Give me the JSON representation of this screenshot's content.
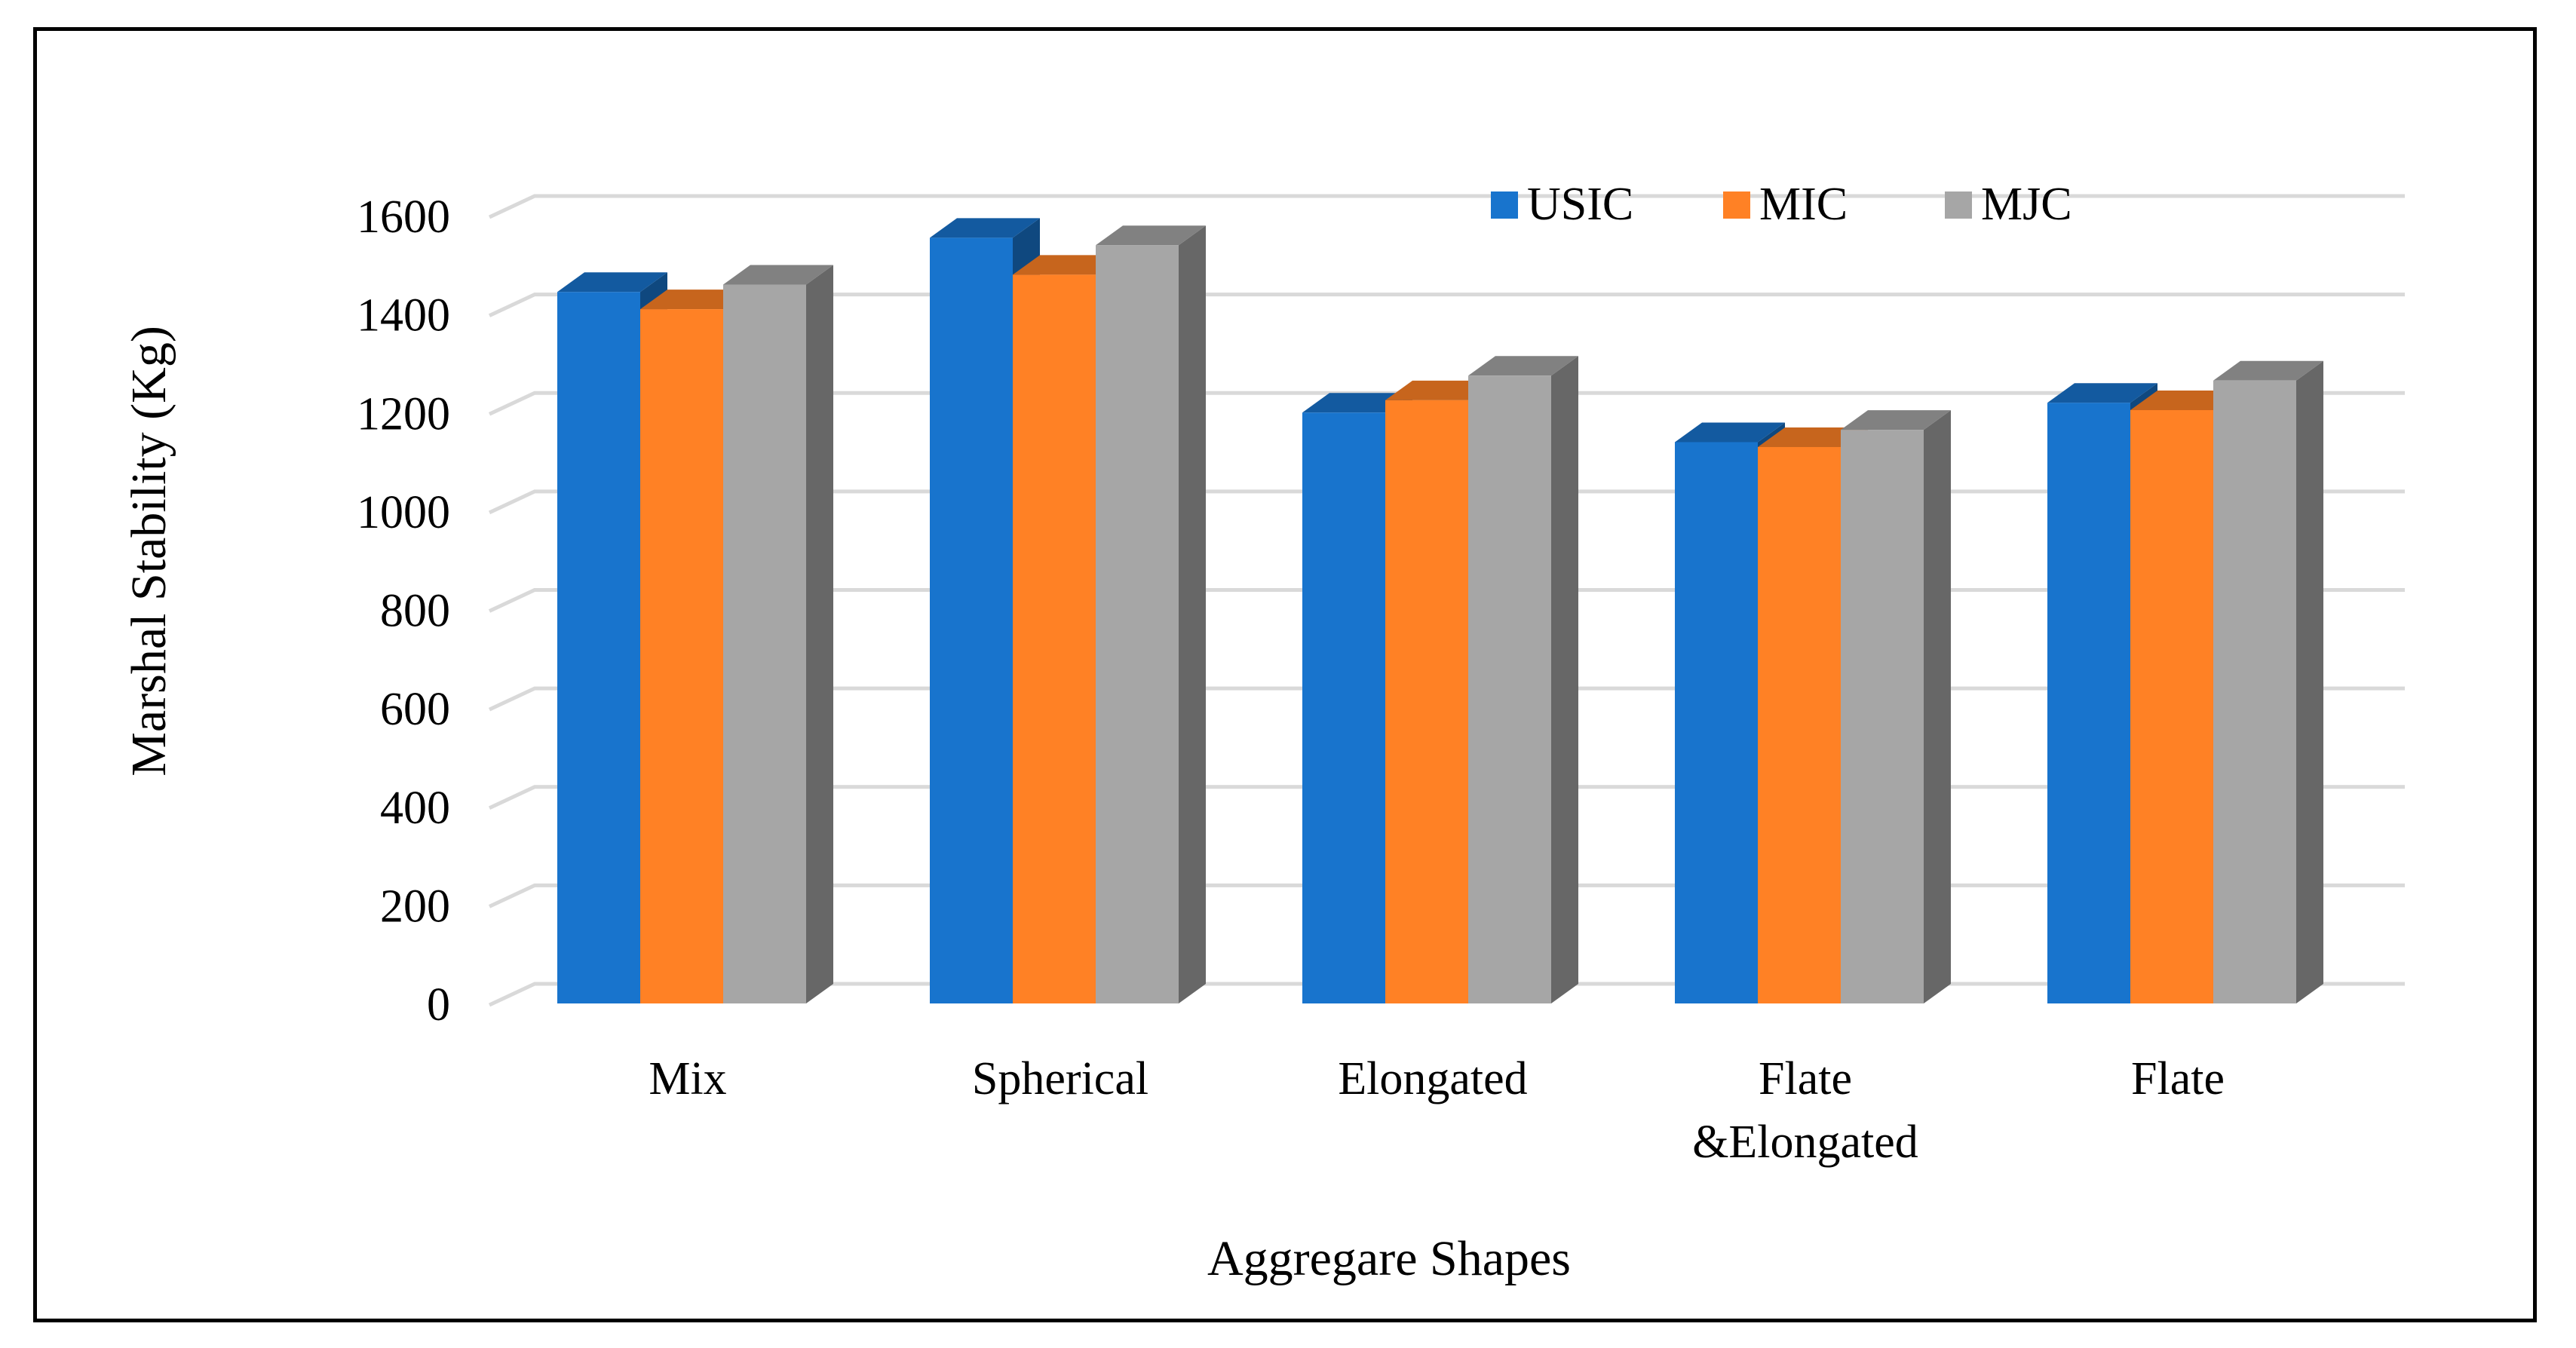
{
  "chart_data": {
    "type": "bar",
    "title": "",
    "xlabel": "Aggregare Shapes",
    "ylabel": "Marshal Stability (Kg)",
    "ylim": [
      0,
      1600
    ],
    "yticks": [
      "0",
      "200",
      "400",
      "600",
      "800",
      "1000",
      "1200",
      "1400",
      "1600"
    ],
    "yticks_values": [
      0,
      200,
      400,
      600,
      800,
      1000,
      1200,
      1400,
      1600
    ],
    "categories": [
      "Mix",
      "Spherical",
      "Elongated",
      "Flate\n&Elongated",
      "Flate"
    ],
    "category_lines": [
      [
        "Mix"
      ],
      [
        "Spherical"
      ],
      [
        "Elongated"
      ],
      [
        "Flate",
        "&Elongated"
      ],
      [
        "Flate"
      ]
    ],
    "series": [
      {
        "name": "USIC",
        "color": "#1874CD",
        "values": [
          1445,
          1555,
          1200,
          1140,
          1220
        ]
      },
      {
        "name": "MIC",
        "color": "#FF8125",
        "values": [
          1410,
          1480,
          1225,
          1130,
          1205
        ]
      },
      {
        "name": "MJC",
        "color": "#A6A6A6",
        "values": [
          1460,
          1540,
          1275,
          1165,
          1265
        ]
      }
    ],
    "grid": true,
    "legend": "top-right",
    "style": "3d-clustered-column"
  }
}
